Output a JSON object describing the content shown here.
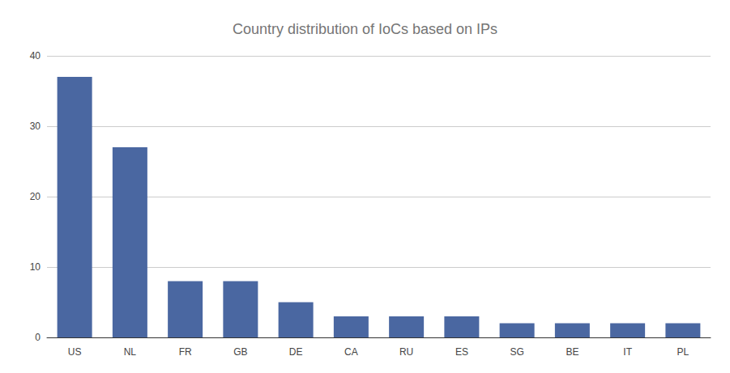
{
  "chart_data": {
    "type": "bar",
    "title": "Country distribution of IoCs based on IPs",
    "categories": [
      "US",
      "NL",
      "FR",
      "GB",
      "DE",
      "CA",
      "RU",
      "ES",
      "SG",
      "BE",
      "IT",
      "PL"
    ],
    "values": [
      37,
      27,
      8,
      8,
      5,
      3,
      3,
      3,
      2,
      2,
      2,
      2
    ],
    "color": "#4a67a1",
    "ylim": [
      0,
      40
    ],
    "yticks": [
      0,
      10,
      20,
      30,
      40
    ],
    "grid": true
  }
}
